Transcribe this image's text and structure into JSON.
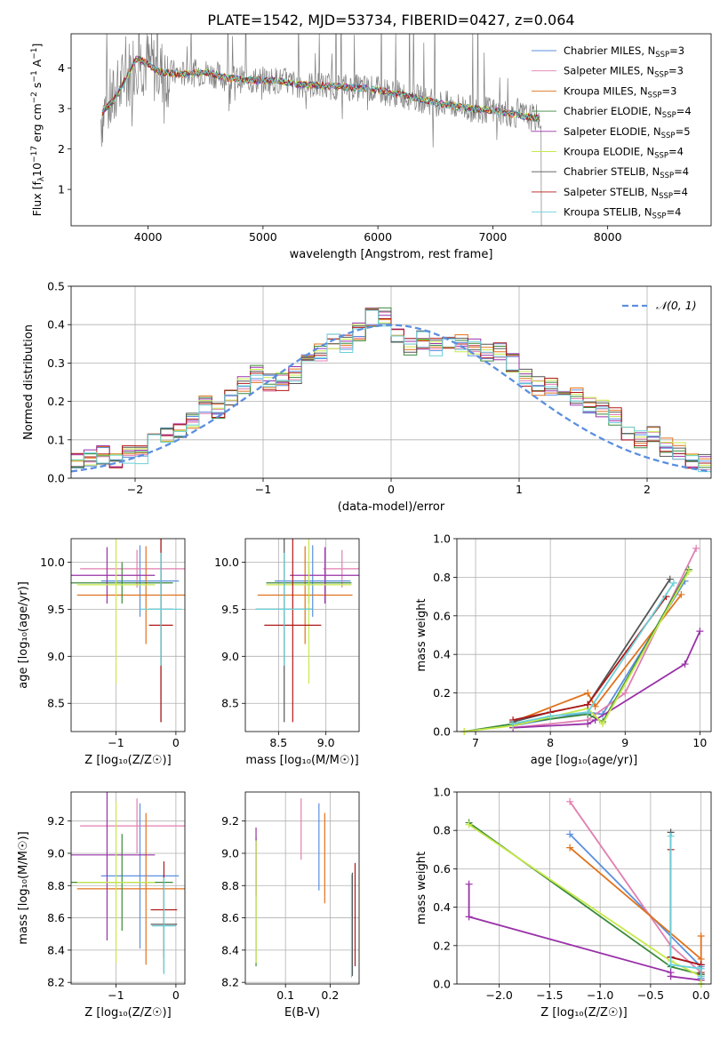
{
  "figure": {
    "title": "PLATE=1542, MJD=53734, FIBERID=0427, z=0.064"
  },
  "series": [
    {
      "name": "Chabrier MILES, N$_{SSP}$=3",
      "legend_main": "Chabrier MILES, N",
      "legend_sub": "SSP",
      "legend_tail": "=3",
      "color": "#5b8fe0"
    },
    {
      "name": "Salpeter MILES, N$_{SSP}$=3",
      "legend_main": "Salpeter MILES, N",
      "legend_sub": "SSP",
      "legend_tail": "=3",
      "color": "#e07fb0"
    },
    {
      "name": "Kroupa MILES, N$_{SSP}$=3",
      "legend_main": "Kroupa MILES, N",
      "legend_sub": "SSP",
      "legend_tail": "=3",
      "color": "#e0721c"
    },
    {
      "name": "Chabrier ELODIE, N$_{SSP}$=4",
      "legend_main": "Chabrier ELODIE, N",
      "legend_sub": "SSP",
      "legend_tail": "=4",
      "color": "#3a8a3a"
    },
    {
      "name": "Salpeter ELODIE, N$_{SSP}$=5",
      "legend_main": "Salpeter ELODIE, N",
      "legend_sub": "SSP",
      "legend_tail": "=5",
      "color": "#9932a8"
    },
    {
      "name": "Kroupa ELODIE, N$_{SSP}$=4",
      "legend_main": "Kroupa ELODIE, N",
      "legend_sub": "SSP",
      "legend_tail": "=4",
      "color": "#c7e84a"
    },
    {
      "name": "Chabrier STELIB, N$_{SSP}$=4",
      "legend_main": "Chabrier STELIB, N",
      "legend_sub": "SSP",
      "legend_tail": "=4",
      "color": "#555555"
    },
    {
      "name": "Salpeter STELIB, N$_{SSP}$=4",
      "legend_main": "Salpeter STELIB, N",
      "legend_sub": "SSP",
      "legend_tail": "=4",
      "color": "#b01818"
    },
    {
      "name": "Kroupa STELIB, N$_{SSP}$=4",
      "legend_main": "Kroupa STELIB, N",
      "legend_sub": "SSP",
      "legend_tail": "=4",
      "color": "#6ad0d8"
    }
  ],
  "chart_data": [
    {
      "id": "spectrum",
      "type": "line",
      "title": "PLATE=1542, MJD=53734, FIBERID=0427, z=0.064",
      "xlabel": "wavelength [Angstrom, rest frame]",
      "ylabel": "Flux [f_λ 10^{-17} erg cm^{-2} s^{-1} A^{-1}]",
      "ylabel_main": "Flux [f",
      "ylabel_sub": "λ",
      "ylabel_mid": "10",
      "ylabel_sup1": "−17",
      "ylabel_mid2": " erg cm",
      "ylabel_sup2": "−2",
      "ylabel_mid3": " s",
      "ylabel_sup3": "−1",
      "ylabel_mid4": " A",
      "ylabel_sup4": "−1",
      "ylabel_end": "]",
      "xlim": [
        3330,
        8900
      ],
      "ylim": [
        0.1,
        4.85
      ],
      "xticks": [
        4000,
        5000,
        6000,
        7000,
        8000
      ],
      "yticks": [
        1,
        2,
        3,
        4
      ],
      "grid": false,
      "legend": "upper right",
      "data_color": "#808080",
      "model_profile": [
        [
          3600,
          2.9
        ],
        [
          3700,
          3.2
        ],
        [
          3800,
          3.7
        ],
        [
          3900,
          4.25
        ],
        [
          4000,
          4.1
        ],
        [
          4100,
          3.9
        ],
        [
          4300,
          3.85
        ],
        [
          4500,
          3.9
        ],
        [
          4700,
          3.75
        ],
        [
          4900,
          3.7
        ],
        [
          5100,
          3.7
        ],
        [
          5300,
          3.6
        ],
        [
          5600,
          3.55
        ],
        [
          5900,
          3.5
        ],
        [
          6200,
          3.35
        ],
        [
          6500,
          3.15
        ],
        [
          6800,
          3.0
        ],
        [
          7000,
          2.95
        ],
        [
          7200,
          2.85
        ],
        [
          7400,
          2.75
        ]
      ],
      "data_range": [
        3590,
        8560
      ]
    },
    {
      "id": "residuals",
      "type": "histogram",
      "xlabel": "(data-model)/error",
      "ylabel": "Normed distribution",
      "xlim": [
        -2.5,
        2.5
      ],
      "ylim": [
        0.0,
        0.5
      ],
      "xticks": [
        -2,
        -1,
        0,
        1,
        2
      ],
      "yticks": [
        0.0,
        0.1,
        0.2,
        0.3,
        0.4,
        0.5
      ],
      "grid": true,
      "legend": "upper right",
      "reference_label": "𝒩(0, 1)",
      "reference_color": "#5b8fe0",
      "bin_width": 0.1,
      "bin_start": -2.5,
      "base_heights": [
        0.04,
        0.05,
        0.06,
        0.05,
        0.06,
        0.06,
        0.1,
        0.11,
        0.13,
        0.15,
        0.19,
        0.18,
        0.21,
        0.24,
        0.27,
        0.25,
        0.25,
        0.27,
        0.3,
        0.33,
        0.36,
        0.35,
        0.38,
        0.42,
        0.42,
        0.37,
        0.34,
        0.36,
        0.34,
        0.35,
        0.35,
        0.34,
        0.33,
        0.33,
        0.3,
        0.26,
        0.24,
        0.24,
        0.22,
        0.21,
        0.19,
        0.18,
        0.16,
        0.12,
        0.1,
        0.11,
        0.08,
        0.07,
        0.05,
        0.04
      ]
    },
    {
      "id": "age_vs_Z",
      "type": "errorbar",
      "xlabel": "Z [log₁₀(Z/Z☉)]",
      "ylabel": "age  [log₁₀(age/yr)]",
      "xlim": [
        -1.75,
        0.15
      ],
      "ylim": [
        8.2,
        10.25
      ],
      "xticks": [
        -1,
        0
      ],
      "yticks": [
        8.5,
        9.0,
        9.5,
        10.0
      ],
      "grid": true,
      "points": [
        {
          "x": -0.6,
          "xerr": 0.65,
          "y": 9.8,
          "yerr": 0.38,
          "series": 0
        },
        {
          "x": -0.65,
          "xerr": 0.95,
          "y": 9.93,
          "yerr": 0.2,
          "series": 1
        },
        {
          "x": -0.5,
          "xerr": 1.15,
          "y": 9.65,
          "yerr": 0.52,
          "series": 2
        },
        {
          "x": -0.9,
          "xerr": 0.85,
          "y": 9.78,
          "yerr": 0.22,
          "series": 3
        },
        {
          "x": -1.15,
          "xerr": 0.8,
          "y": 9.86,
          "yerr": 0.3,
          "series": 4
        },
        {
          "x": -1.0,
          "xerr": 0.65,
          "y": 9.76,
          "yerr": 1.05,
          "series": 5
        },
        {
          "x": -0.25,
          "xerr": 0.2,
          "y": 9.5,
          "yerr": 1.2,
          "series": 6
        },
        {
          "x": -0.25,
          "xerr": 0.2,
          "y": 9.33,
          "yerr": 1.03,
          "series": 7
        },
        {
          "x": -0.25,
          "xerr": 0.35,
          "y": 9.5,
          "yerr": 0.6,
          "series": 8
        }
      ]
    },
    {
      "id": "age_vs_mass",
      "type": "errorbar",
      "xlabel": "mass [log₁₀(M/M☉)]",
      "ylabel": "",
      "xlim": [
        8.15,
        9.35
      ],
      "ylim": [
        8.2,
        10.25
      ],
      "xticks": [
        8.5,
        9.0
      ],
      "yticks": [
        8.5,
        9.0,
        9.5,
        10.0
      ],
      "grid": true,
      "points": [
        {
          "x": 8.86,
          "xerr": 0.4,
          "y": 9.8,
          "yerr": 0.38,
          "series": 0
        },
        {
          "x": 9.17,
          "xerr": 0.2,
          "y": 9.93,
          "yerr": 0.2,
          "series": 1
        },
        {
          "x": 8.78,
          "xerr": 0.5,
          "y": 9.65,
          "yerr": 0.52,
          "series": 2
        },
        {
          "x": 8.82,
          "xerr": 0.45,
          "y": 9.78,
          "yerr": 0.22,
          "series": 3
        },
        {
          "x": 8.99,
          "xerr": 0.37,
          "y": 9.86,
          "yerr": 0.3,
          "series": 4
        },
        {
          "x": 8.82,
          "xerr": 0.45,
          "y": 9.76,
          "yerr": 1.05,
          "series": 5
        },
        {
          "x": 8.56,
          "xerr": 0.3,
          "y": 9.5,
          "yerr": 1.2,
          "series": 6
        },
        {
          "x": 8.65,
          "xerr": 0.3,
          "y": 9.33,
          "yerr": 1.03,
          "series": 7
        },
        {
          "x": 8.56,
          "xerr": 0.3,
          "y": 9.5,
          "yerr": 0.6,
          "series": 8
        }
      ]
    },
    {
      "id": "mass_weight_vs_age",
      "type": "line",
      "xlabel": "age  [log₁₀(age/yr)]",
      "ylabel": "mass weight",
      "xlim": [
        6.75,
        10.15
      ],
      "ylim": [
        0.0,
        1.0
      ],
      "xticks": [
        7,
        8,
        9,
        10
      ],
      "yticks": [
        0.0,
        0.2,
        0.4,
        0.6,
        0.8,
        1.0
      ],
      "grid": true,
      "lines": [
        {
          "series": 0,
          "x": [
            7.5,
            8.5,
            8.7,
            9.8
          ],
          "y": [
            0.03,
            0.1,
            0.09,
            0.78
          ]
        },
        {
          "series": 1,
          "x": [
            7.5,
            8.5,
            9.0,
            9.95
          ],
          "y": [
            0.02,
            0.06,
            0.2,
            0.95
          ]
        },
        {
          "series": 2,
          "x": [
            7.5,
            8.5,
            8.6,
            9.75
          ],
          "y": [
            0.05,
            0.2,
            0.13,
            0.71
          ]
        },
        {
          "series": 3,
          "x": [
            6.85,
            7.5,
            8.5,
            8.7,
            9.85
          ],
          "y": [
            0.0,
            0.04,
            0.09,
            0.05,
            0.84
          ]
        },
        {
          "series": 4,
          "x": [
            7.5,
            8.5,
            8.6,
            9.8,
            10.0
          ],
          "y": [
            0.02,
            0.04,
            0.06,
            0.35,
            0.52
          ]
        },
        {
          "series": 5,
          "x": [
            6.85,
            7.5,
            8.5,
            8.7,
            9.85
          ],
          "y": [
            0.0,
            0.03,
            0.12,
            0.04,
            0.83
          ]
        },
        {
          "series": 6,
          "x": [
            7.5,
            8.0,
            8.5,
            9.6
          ],
          "y": [
            0.05,
            0.1,
            0.14,
            0.79
          ]
        },
        {
          "series": 7,
          "x": [
            7.5,
            8.0,
            8.5,
            9.55
          ],
          "y": [
            0.06,
            0.1,
            0.14,
            0.7
          ]
        },
        {
          "series": 8,
          "x": [
            7.5,
            8.0,
            8.5,
            9.65
          ],
          "y": [
            0.04,
            0.08,
            0.1,
            0.77
          ]
        }
      ]
    },
    {
      "id": "mass_vs_Z",
      "type": "errorbar",
      "xlabel": "Z [log₁₀(Z/Z☉)]",
      "ylabel": "mass [log₁₀(M/M☉)]",
      "xlim": [
        -1.75,
        0.15
      ],
      "ylim": [
        8.19,
        9.38
      ],
      "xticks": [
        -1,
        0
      ],
      "yticks": [
        8.2,
        8.4,
        8.6,
        8.8,
        9.0,
        9.2
      ],
      "grid": true,
      "points": [
        {
          "x": -0.6,
          "xerr": 0.65,
          "y": 8.86,
          "yerr": 0.45,
          "series": 0
        },
        {
          "x": -0.65,
          "xerr": 0.95,
          "y": 9.17,
          "yerr": 0.17,
          "series": 1
        },
        {
          "x": -0.5,
          "xerr": 1.15,
          "y": 8.78,
          "yerr": 0.47,
          "series": 2
        },
        {
          "x": -0.9,
          "xerr": 0.85,
          "y": 8.82,
          "yerr": 0.3,
          "series": 3
        },
        {
          "x": -1.15,
          "xerr": 0.8,
          "y": 8.99,
          "yerr": 0.53,
          "series": 4
        },
        {
          "x": -1.0,
          "xerr": 0.65,
          "y": 8.82,
          "yerr": 0.5,
          "series": 5
        },
        {
          "x": -0.2,
          "xerr": 0.22,
          "y": 8.56,
          "yerr": 0.3,
          "series": 6
        },
        {
          "x": -0.2,
          "xerr": 0.22,
          "y": 8.65,
          "yerr": 0.3,
          "series": 7
        },
        {
          "x": -0.2,
          "xerr": 0.2,
          "y": 8.55,
          "yerr": 0.3,
          "series": 8
        }
      ]
    },
    {
      "id": "mass_vs_EBV",
      "type": "errorbar",
      "xlabel": "E(B-V)",
      "ylabel": "",
      "xlim": [
        0.01,
        0.265
      ],
      "ylim": [
        8.19,
        9.38
      ],
      "xticks": [
        0.1,
        0.2
      ],
      "yticks": [
        8.2,
        8.4,
        8.6,
        8.8,
        9.0,
        9.2
      ],
      "grid": true,
      "points": [
        {
          "x": 0.175,
          "y": 9.04,
          "yerr": 0.27,
          "series": 0
        },
        {
          "x": 0.135,
          "y": 9.15,
          "yerr": 0.19,
          "series": 1
        },
        {
          "x": 0.188,
          "y": 8.97,
          "yerr": 0.28,
          "series": 2
        },
        {
          "x": 0.034,
          "y": 8.7,
          "yerr": 0.4,
          "series": 3
        },
        {
          "x": 0.034,
          "y": 8.95,
          "yerr": 0.21,
          "series": 4
        },
        {
          "x": 0.034,
          "y": 8.7,
          "yerr": 0.38,
          "series": 5
        },
        {
          "x": 0.25,
          "y": 8.56,
          "yerr": 0.32,
          "series": 6
        },
        {
          "x": 0.256,
          "y": 8.62,
          "yerr": 0.32,
          "series": 7
        },
        {
          "x": 0.248,
          "y": 8.55,
          "yerr": 0.32,
          "series": 8
        }
      ]
    },
    {
      "id": "mass_weight_vs_Z",
      "type": "line",
      "xlabel": "Z [log₁₀(Z/Z☉)]",
      "ylabel": "mass weight",
      "xlim": [
        -2.42,
        0.1
      ],
      "ylim": [
        0.0,
        1.0
      ],
      "xticks": [
        -2.0,
        -1.5,
        -1.0,
        -0.5,
        0.0
      ],
      "yticks": [
        0.0,
        0.2,
        0.4,
        0.6,
        0.8,
        1.0
      ],
      "grid": true,
      "lines": [
        {
          "series": 0,
          "x": [
            -1.3,
            0.0,
            0.0,
            0.0
          ],
          "y": [
            0.78,
            0.09,
            0.1,
            0.03
          ]
        },
        {
          "series": 1,
          "x": [
            -1.3,
            -0.3,
            0.0,
            0.0
          ],
          "y": [
            0.95,
            0.2,
            0.06,
            0.02
          ]
        },
        {
          "series": 2,
          "x": [
            -1.3,
            0.0,
            0.0,
            0.0
          ],
          "y": [
            0.71,
            0.13,
            0.25,
            0.05
          ]
        },
        {
          "series": 3,
          "x": [
            -2.3,
            -0.3,
            0.0,
            0.0
          ],
          "y": [
            0.84,
            0.09,
            0.05,
            0.0
          ]
        },
        {
          "series": 4,
          "x": [
            -2.3,
            -2.3,
            -0.3,
            -0.3,
            0.0
          ],
          "y": [
            0.52,
            0.35,
            0.06,
            0.04,
            0.02
          ]
        },
        {
          "series": 5,
          "x": [
            -2.3,
            -0.3,
            0.0,
            0.0
          ],
          "y": [
            0.83,
            0.12,
            0.04,
            0.0
          ]
        },
        {
          "series": 6,
          "x": [
            -0.3,
            -0.3,
            0.0,
            0.0
          ],
          "y": [
            0.79,
            0.14,
            0.1,
            0.05
          ]
        },
        {
          "series": 7,
          "x": [
            -0.3,
            -0.3,
            0.0,
            0.0
          ],
          "y": [
            0.7,
            0.14,
            0.1,
            0.06
          ]
        },
        {
          "series": 8,
          "x": [
            -0.3,
            -0.3,
            0.0,
            0.0
          ],
          "y": [
            0.77,
            0.1,
            0.08,
            0.04
          ]
        }
      ]
    }
  ]
}
